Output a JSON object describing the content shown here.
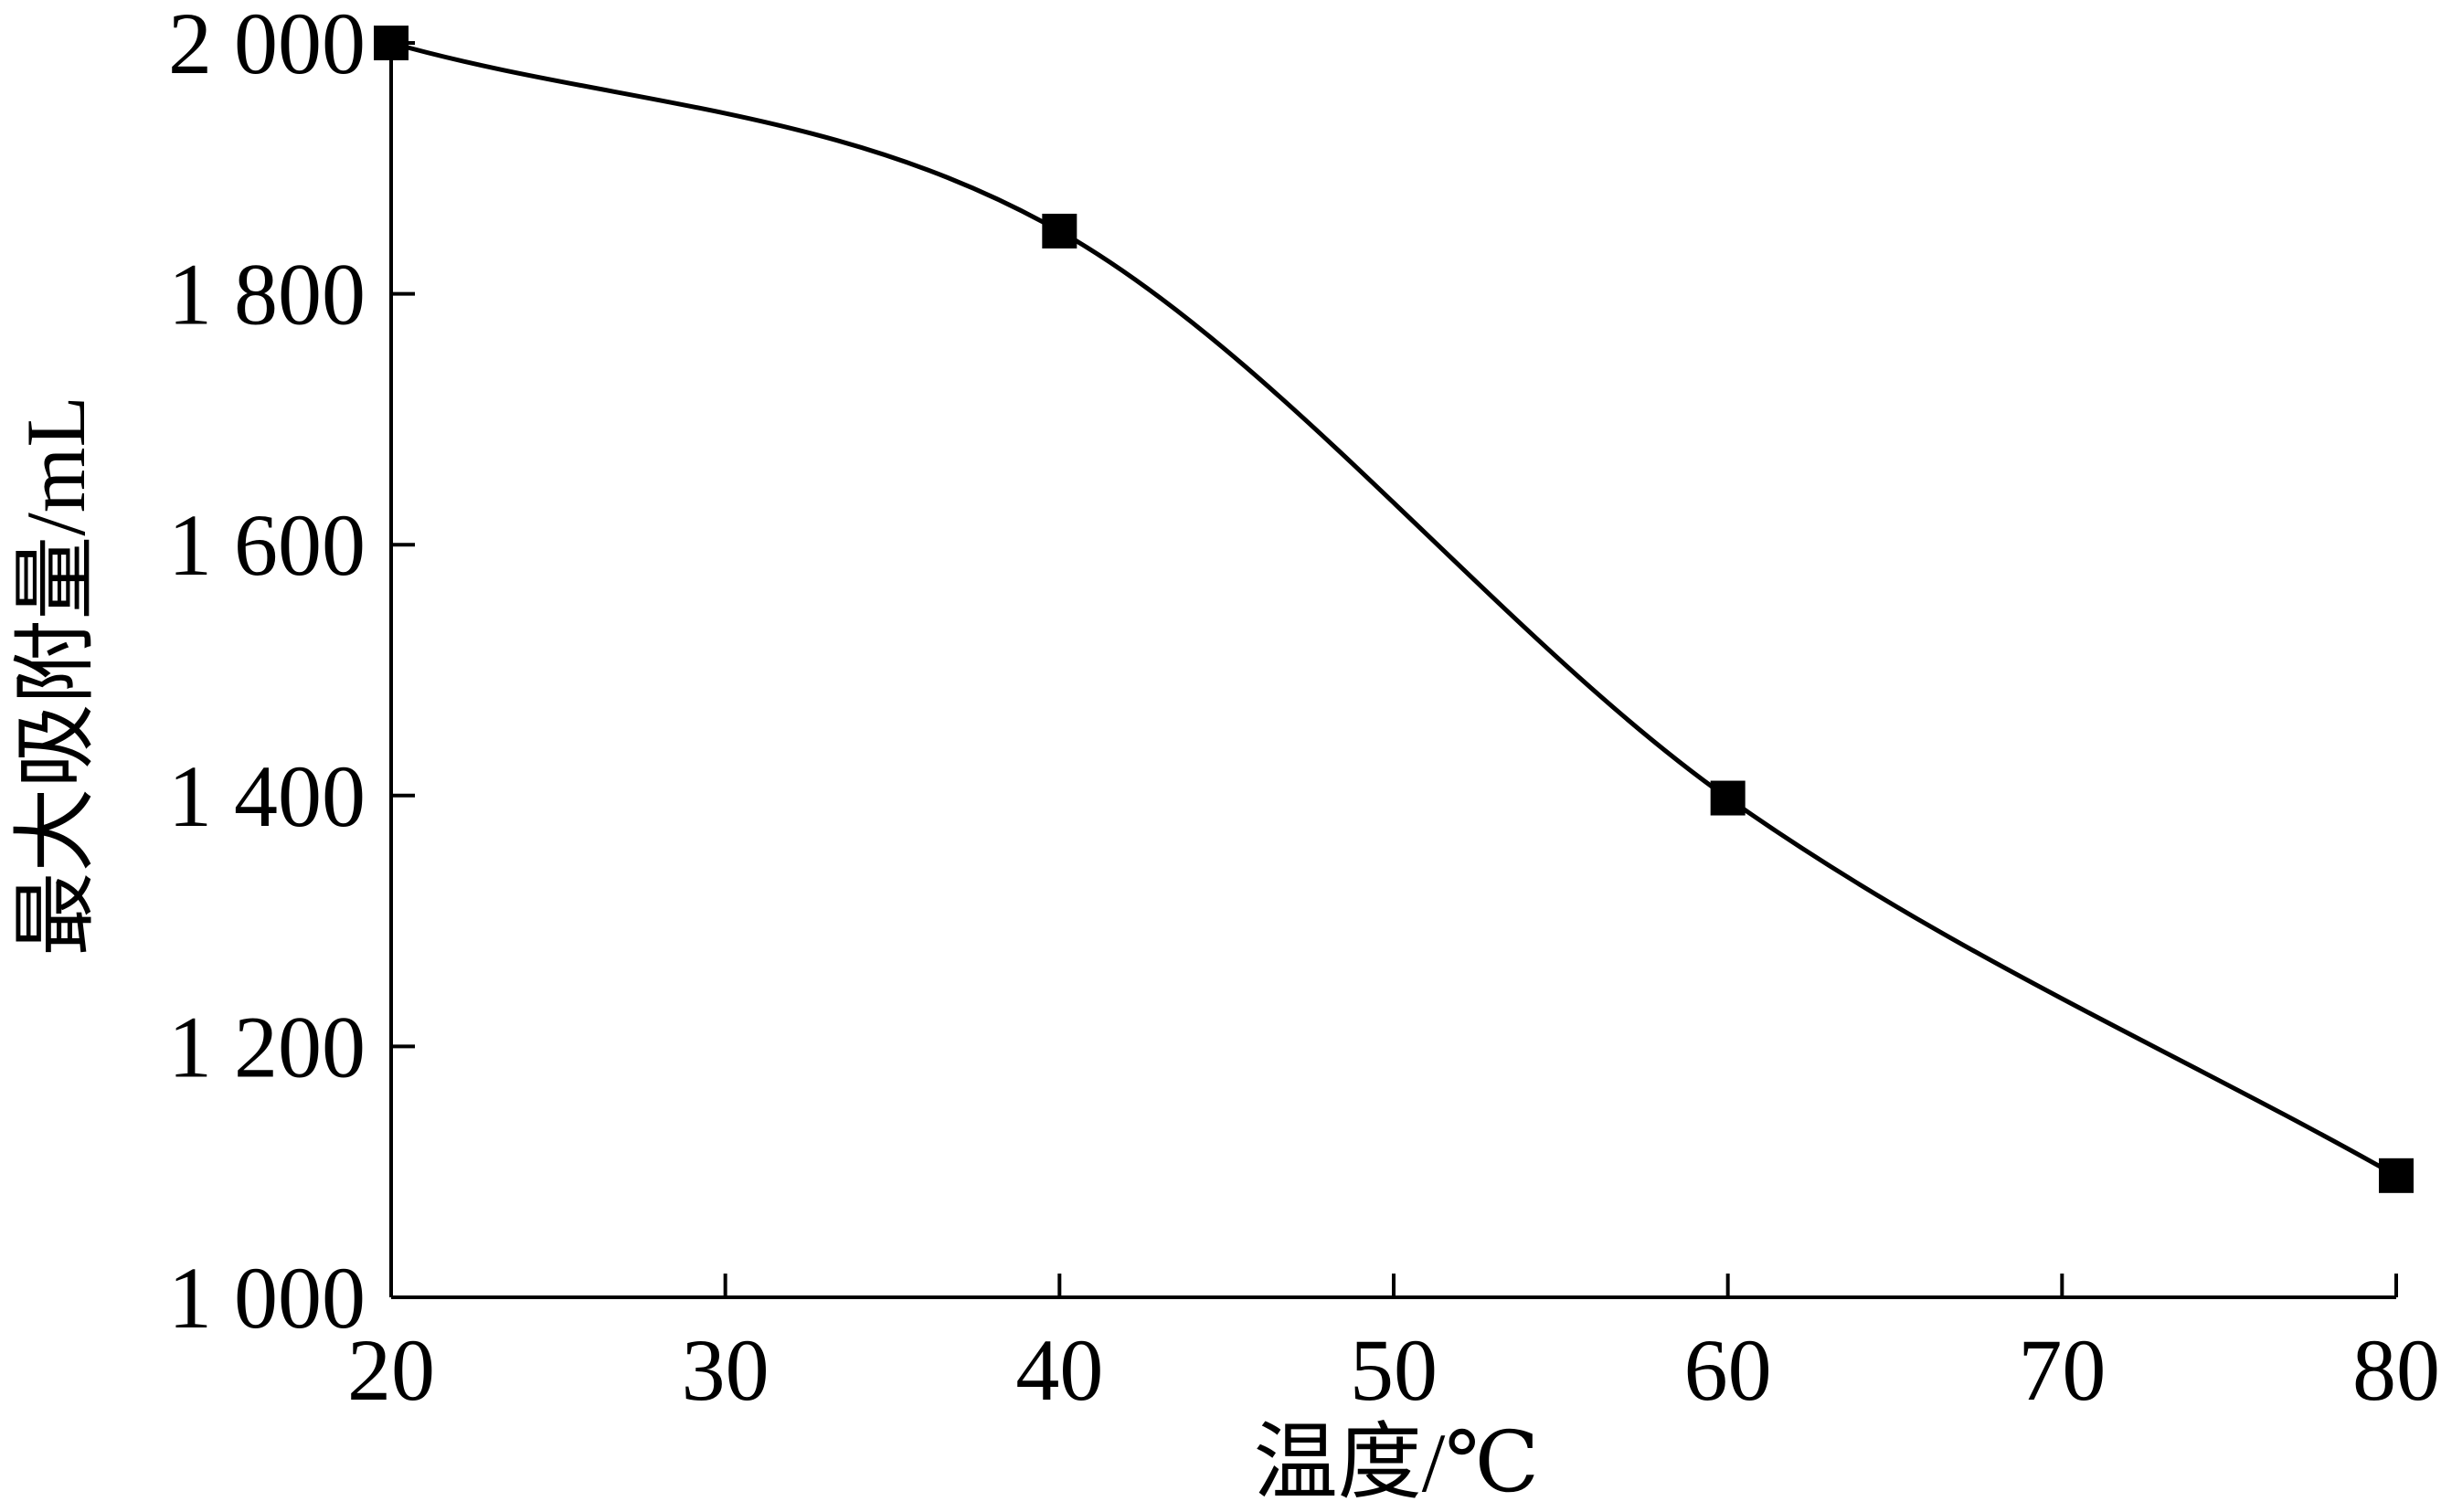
{
  "chart_data": {
    "type": "line",
    "title": "",
    "xlabel": "温度/℃",
    "ylabel": "最大吸附量/mL",
    "x": [
      20,
      40,
      60,
      80
    ],
    "series": [
      {
        "name": "",
        "values": [
          2000,
          1850,
          1398,
          1097
        ],
        "color": "#000000",
        "marker": "square",
        "smooth": true
      }
    ],
    "xlim": [
      20,
      80
    ],
    "ylim": [
      1000,
      2000
    ],
    "xticks": [
      20,
      30,
      40,
      50,
      60,
      70,
      80
    ],
    "xtick_labels": [
      "20",
      "30",
      "40",
      "50",
      "60",
      "70",
      "80"
    ],
    "yticks": [
      1000,
      1200,
      1400,
      1600,
      1800,
      2000
    ],
    "ytick_labels": [
      "1 000",
      "1 200",
      "1 400",
      "1 600",
      "1 800",
      "2 000"
    ],
    "grid": false,
    "legend": "none"
  }
}
